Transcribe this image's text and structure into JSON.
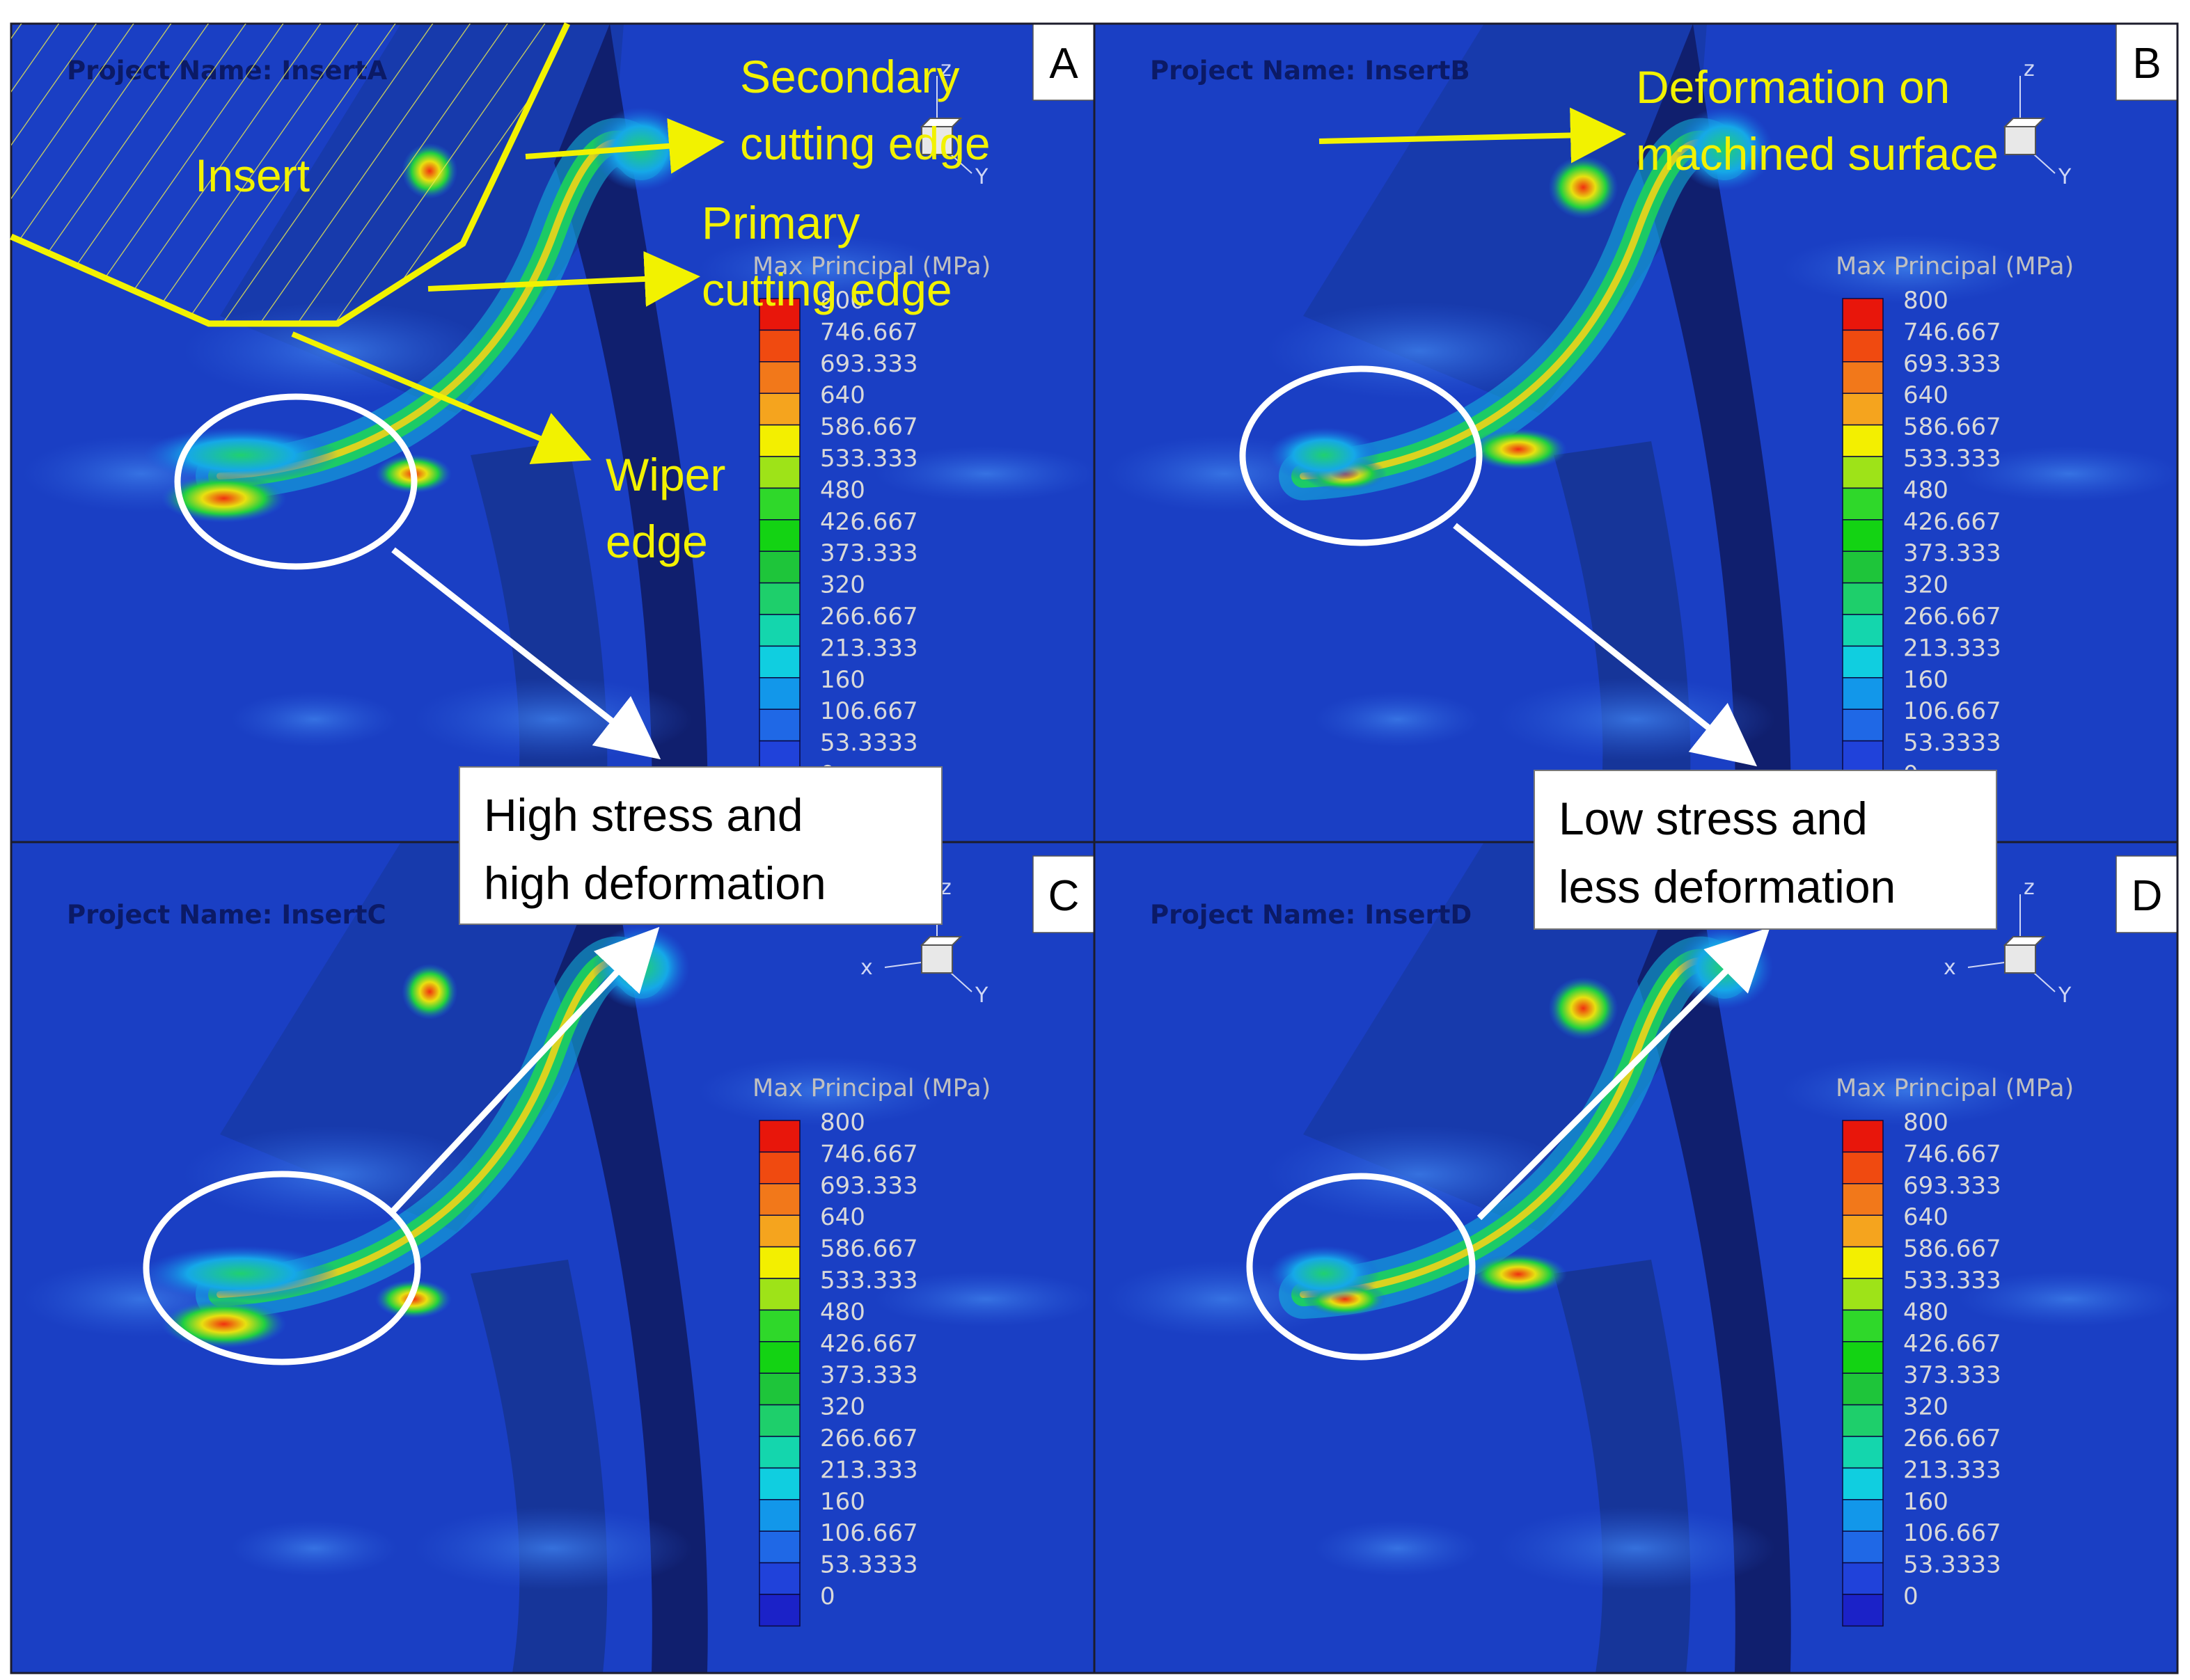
{
  "panels": [
    {
      "letter": "A",
      "project_name": "Project Name: InsertA",
      "legend_title": "Max Principal (MPa)"
    },
    {
      "letter": "B",
      "project_name": "Project Name: InsertB",
      "legend_title": "Max Principal (MPa)"
    },
    {
      "letter": "C",
      "project_name": "Project Name: InsertC",
      "legend_title": "Max Principal (MPa)"
    },
    {
      "letter": "D",
      "project_name": "Project Name: InsertD",
      "legend_title": "Max Principal (MPa)"
    }
  ],
  "legend": {
    "labels": [
      "800",
      "746.667",
      "693.333",
      "640",
      "586.667",
      "533.333",
      "480",
      "426.667",
      "373.333",
      "320",
      "266.667",
      "213.333",
      "160",
      "106.667",
      "53.3333",
      "0"
    ],
    "colors": [
      "#e8160b",
      "#f04a10",
      "#f2781a",
      "#f5a41e",
      "#f3ef00",
      "#9ee318",
      "#2fd82a",
      "#13d313",
      "#1ec53a",
      "#1ecf6b",
      "#14d6ad",
      "#10cee0",
      "#1297ea",
      "#1f68e6",
      "#2042da",
      "#1b22c8"
    ]
  },
  "axis_triad": {
    "x": "x",
    "y": "Y",
    "z": "z"
  },
  "annotations": {
    "insert": "Insert",
    "secondary_edge": [
      "Secondary",
      "cutting edge"
    ],
    "primary_edge": [
      "Primary",
      "cutting edge"
    ],
    "wiper_edge": [
      "Wiper",
      "edge"
    ],
    "deformation": [
      "Deformation on",
      "machined surface"
    ]
  },
  "callouts": {
    "high": [
      "High stress and",
      "high deformation"
    ],
    "low": [
      "Low stress and",
      "less deformation"
    ]
  },
  "colors": {
    "background_blue": "#1a3fc4",
    "annotation_yellow": "#f2f200",
    "frame": "#1c1c2c"
  }
}
